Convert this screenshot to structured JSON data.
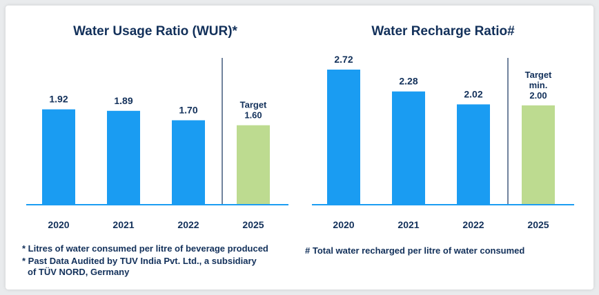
{
  "charts": [
    {
      "title": "Water Usage Ratio (WUR)*",
      "notes": [
        "* Litres of water consumed per litre of beverage produced",
        "* Past Data Audited by TUV India Pvt. Ltd., a subsidiary",
        "of TÜV NORD, Germany"
      ]
    },
    {
      "title": "Water Recharge Ratio#",
      "notes": [
        "# Total water recharged per litre of water consumed"
      ]
    }
  ],
  "chart_data": [
    {
      "type": "bar",
      "title": "Water Usage Ratio (WUR)*",
      "categories": [
        "2020",
        "2021",
        "2022",
        "2025"
      ],
      "values": [
        1.92,
        1.89,
        1.7,
        1.6
      ],
      "labels": [
        "1.92",
        "1.89",
        "1.70",
        "Target|1.60"
      ],
      "target_index": 3,
      "ylim": [
        0,
        3.15
      ],
      "colors": {
        "actual": "#1a9cf2",
        "target": "#bddb90",
        "text": "#12305a",
        "axis": "#1a9cf2",
        "divider": "#12305a"
      },
      "grid": false
    },
    {
      "type": "bar",
      "title": "Water Recharge Ratio#",
      "categories": [
        "2020",
        "2021",
        "2022",
        "2025"
      ],
      "values": [
        2.72,
        2.28,
        2.02,
        2.0
      ],
      "labels": [
        "2.72",
        "2.28",
        "2.02",
        "Target|min.|2.00"
      ],
      "target_index": 3,
      "ylim": [
        0,
        3.15
      ],
      "colors": {
        "actual": "#1a9cf2",
        "target": "#bddb90",
        "text": "#12305a",
        "axis": "#1a9cf2",
        "divider": "#12305a"
      },
      "grid": false
    }
  ]
}
